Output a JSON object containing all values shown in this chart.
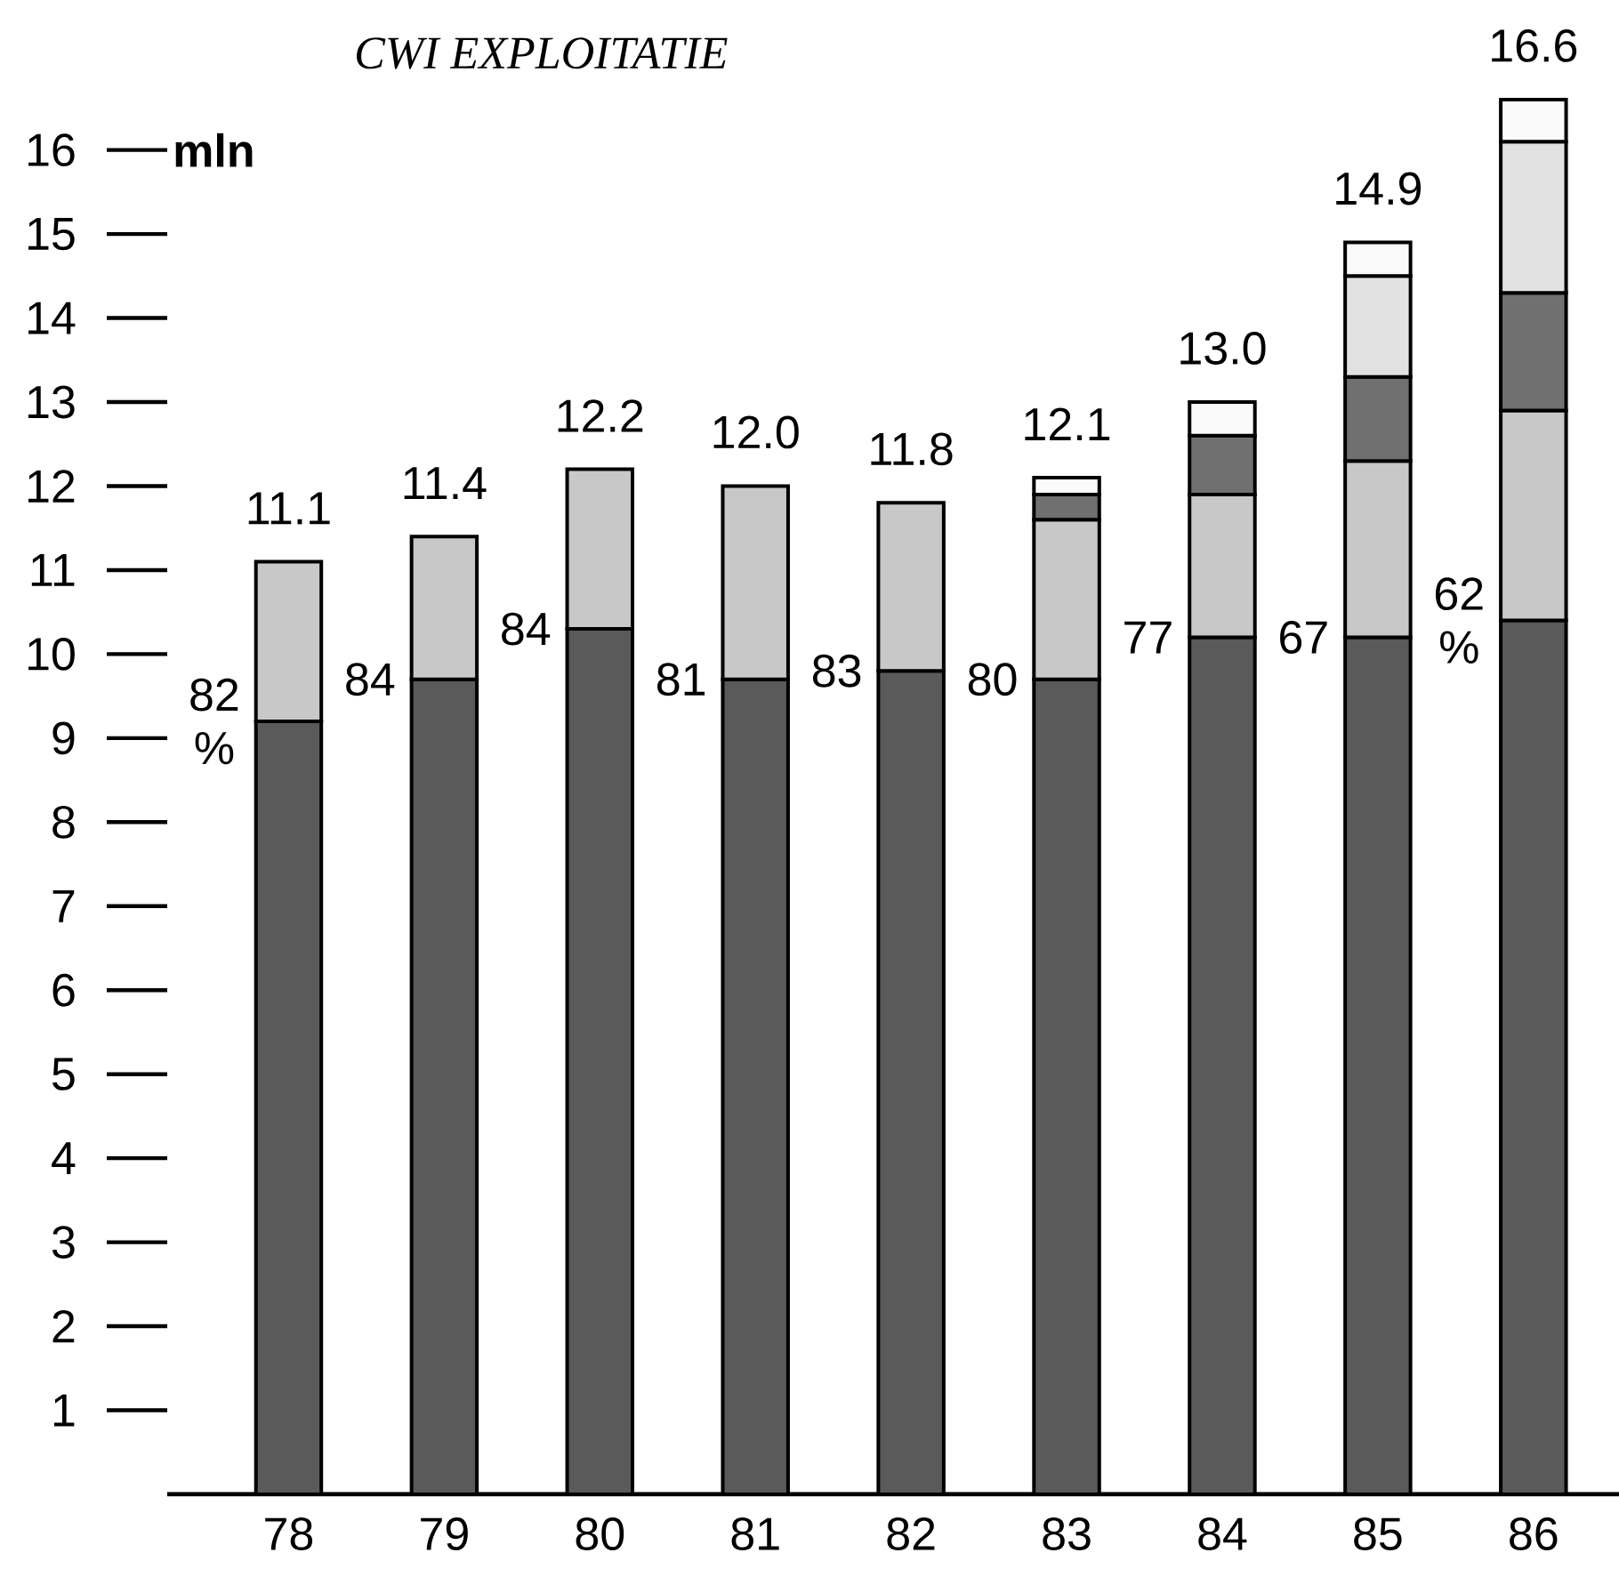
{
  "chart_data": {
    "type": "bar",
    "stacked": true,
    "title": "CWI EXPLOITATIE",
    "ylabel": "mln",
    "categories": [
      "78",
      "79",
      "80",
      "81",
      "82",
      "83",
      "84",
      "85",
      "86"
    ],
    "series": [
      {
        "color": "#5a5a5a",
        "values": [
          9.2,
          9.7,
          10.3,
          9.7,
          9.8,
          9.7,
          10.2,
          10.2,
          10.4
        ]
      },
      {
        "color": "#c8c8c8",
        "values": [
          1.9,
          1.7,
          1.9,
          2.3,
          2.0,
          1.9,
          1.7,
          2.1,
          2.5
        ]
      },
      {
        "color": "#707070",
        "values": [
          null,
          null,
          null,
          null,
          null,
          0.3,
          0.7,
          1.0,
          1.4
        ]
      },
      {
        "color": "#e2e2e2",
        "values": [
          null,
          null,
          null,
          null,
          null,
          null,
          null,
          1.2,
          1.8
        ]
      },
      {
        "color": "#fafafa",
        "values": [
          null,
          null,
          null,
          null,
          null,
          0.2,
          0.4,
          0.4,
          0.5
        ]
      }
    ],
    "totals": [
      "11.1",
      "11.4",
      "12.2",
      "12.0",
      "11.8",
      "12.1",
      "13.0",
      "14.9",
      "16.6"
    ],
    "annotations": [
      "82 %",
      "84",
      "84",
      "81",
      "83",
      "80",
      "77",
      "67",
      "62 %"
    ],
    "ylim": [
      0,
      16.6
    ],
    "yticks": [
      1,
      2,
      3,
      4,
      5,
      6,
      7,
      8,
      9,
      10,
      11,
      12,
      13,
      14,
      15,
      16
    ],
    "grid": false
  }
}
